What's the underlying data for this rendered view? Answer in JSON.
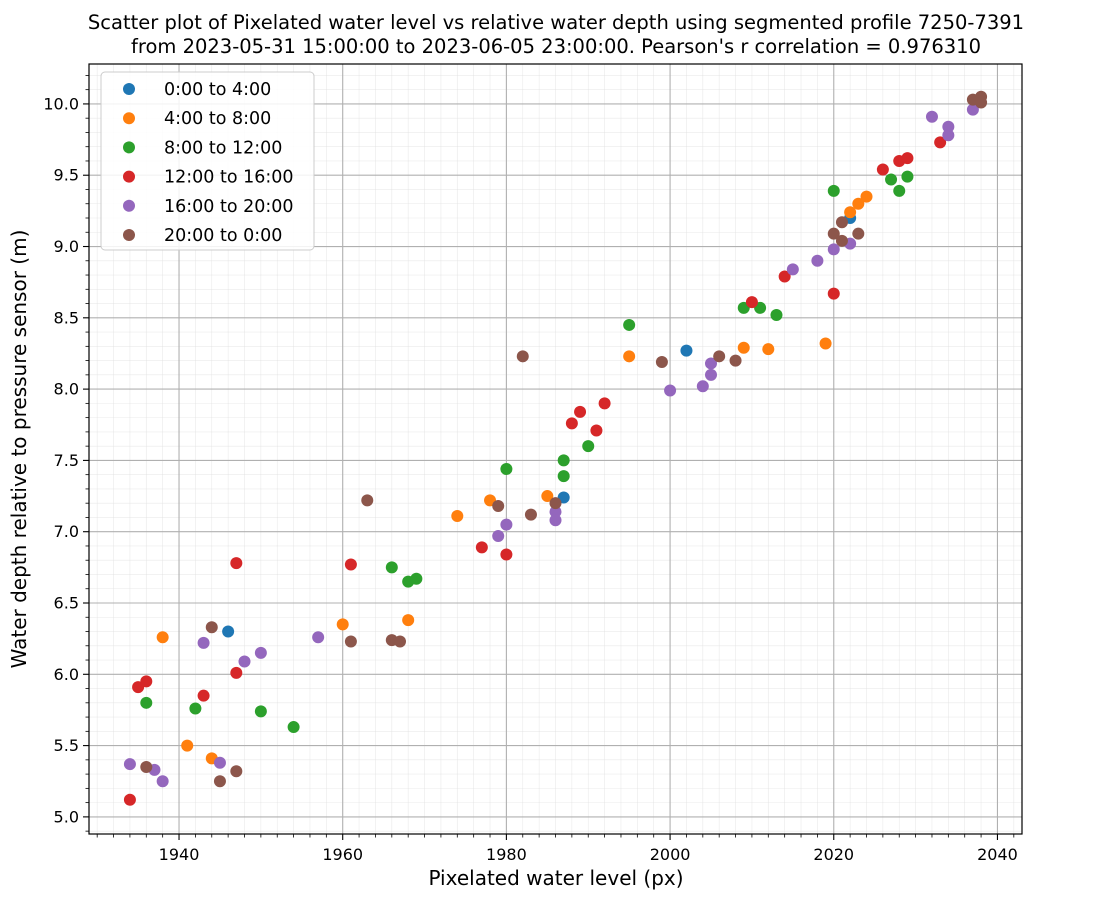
{
  "chart_data": {
    "type": "scatter",
    "title": "Scatter plot of Pixelated water level vs relative water depth using segmented profile 7250-7391\nfrom 2023-05-31 15:00:00 to 2023-06-05 23:00:00. Pearson's r correlation = 0.976310",
    "xlabel": "Pixelated water level (px)",
    "ylabel": "Water depth relative to pressure sensor (m)",
    "xlim": [
      1929,
      2043
    ],
    "ylim": [
      4.88,
      10.28
    ],
    "xticks": [
      1940,
      1960,
      1980,
      2000,
      2020,
      2040
    ],
    "yticks": [
      5.0,
      5.5,
      6.0,
      6.5,
      7.0,
      7.5,
      8.0,
      8.5,
      9.0,
      9.5,
      10.0
    ],
    "xtick_labels": [
      "1940",
      "1960",
      "1980",
      "2000",
      "2020",
      "2040"
    ],
    "ytick_labels": [
      "5.0",
      "5.5",
      "6.0",
      "6.5",
      "7.0",
      "7.5",
      "8.0",
      "8.5",
      "9.0",
      "9.5",
      "10.0"
    ],
    "grid": "major and minor",
    "legend_position": "top-left",
    "series": [
      {
        "name": "0:00 to 4:00",
        "color": "#1f77b4",
        "points": [
          [
            1946,
            6.3
          ],
          [
            1987,
            7.24
          ],
          [
            2002,
            8.27
          ],
          [
            2022,
            9.2
          ]
        ]
      },
      {
        "name": "4:00 to 8:00",
        "color": "#ff7f0e",
        "points": [
          [
            1938,
            6.26
          ],
          [
            1941,
            5.5
          ],
          [
            1944,
            5.41
          ],
          [
            1960,
            6.35
          ],
          [
            1968,
            6.38
          ],
          [
            1974,
            7.11
          ],
          [
            1978,
            7.22
          ],
          [
            1985,
            7.25
          ],
          [
            1995,
            8.23
          ],
          [
            2009,
            8.29
          ],
          [
            2012,
            8.28
          ],
          [
            2019,
            8.32
          ],
          [
            2022,
            9.24
          ],
          [
            2023,
            9.3
          ],
          [
            2024,
            9.35
          ]
        ]
      },
      {
        "name": "8:00 to 12:00",
        "color": "#2ca02c",
        "points": [
          [
            1936,
            5.8
          ],
          [
            1942,
            5.76
          ],
          [
            1950,
            5.74
          ],
          [
            1954,
            5.63
          ],
          [
            1966,
            6.75
          ],
          [
            1968,
            6.65
          ],
          [
            1969,
            6.67
          ],
          [
            1980,
            7.44
          ],
          [
            1987,
            7.5
          ],
          [
            1987,
            7.39
          ],
          [
            1990,
            7.6
          ],
          [
            1995,
            8.45
          ],
          [
            2009,
            8.57
          ],
          [
            2011,
            8.57
          ],
          [
            2013,
            8.52
          ],
          [
            2020,
            9.39
          ],
          [
            2027,
            9.47
          ],
          [
            2028,
            9.39
          ],
          [
            2029,
            9.49
          ]
        ]
      },
      {
        "name": "12:00 to 16:00",
        "color": "#d62728",
        "points": [
          [
            1934,
            5.12
          ],
          [
            1935,
            5.91
          ],
          [
            1936,
            5.95
          ],
          [
            1943,
            5.85
          ],
          [
            1947,
            6.01
          ],
          [
            1947,
            6.78
          ],
          [
            1961,
            6.77
          ],
          [
            1977,
            6.89
          ],
          [
            1980,
            6.84
          ],
          [
            1988,
            7.76
          ],
          [
            1989,
            7.84
          ],
          [
            1991,
            7.71
          ],
          [
            1992,
            7.9
          ],
          [
            2010,
            8.61
          ],
          [
            2014,
            8.79
          ],
          [
            2020,
            8.67
          ],
          [
            2026,
            9.54
          ],
          [
            2028,
            9.6
          ],
          [
            2029,
            9.62
          ],
          [
            2033,
            9.73
          ]
        ]
      },
      {
        "name": "16:00 to 20:00",
        "color": "#9467bd",
        "points": [
          [
            1934,
            5.37
          ],
          [
            1937,
            5.33
          ],
          [
            1938,
            5.25
          ],
          [
            1943,
            6.22
          ],
          [
            1945,
            5.38
          ],
          [
            1948,
            6.09
          ],
          [
            1950,
            6.15
          ],
          [
            1957,
            6.26
          ],
          [
            1979,
            6.97
          ],
          [
            1980,
            7.05
          ],
          [
            1986,
            7.14
          ],
          [
            1986,
            7.08
          ],
          [
            2000,
            7.99
          ],
          [
            2004,
            8.02
          ],
          [
            2005,
            8.18
          ],
          [
            2005,
            8.1
          ],
          [
            2015,
            8.84
          ],
          [
            2018,
            8.9
          ],
          [
            2020,
            8.98
          ],
          [
            2022,
            9.02
          ],
          [
            2032,
            9.91
          ],
          [
            2034,
            9.84
          ],
          [
            2034,
            9.78
          ],
          [
            2037,
            9.96
          ]
        ]
      },
      {
        "name": "20:00 to 0:00",
        "color": "#8c564b",
        "points": [
          [
            1936,
            5.35
          ],
          [
            1944,
            6.33
          ],
          [
            1945,
            5.25
          ],
          [
            1947,
            5.32
          ],
          [
            1961,
            6.23
          ],
          [
            1963,
            7.22
          ],
          [
            1966,
            6.24
          ],
          [
            1967,
            6.23
          ],
          [
            1979,
            7.18
          ],
          [
            1982,
            8.23
          ],
          [
            1983,
            7.12
          ],
          [
            1986,
            7.2
          ],
          [
            1999,
            8.19
          ],
          [
            2006,
            8.23
          ],
          [
            2008,
            8.2
          ],
          [
            2020,
            9.09
          ],
          [
            2021,
            9.17
          ],
          [
            2021,
            9.04
          ],
          [
            2023,
            9.09
          ],
          [
            2037,
            10.03
          ],
          [
            2038,
            10.05
          ],
          [
            2038,
            10.01
          ]
        ]
      }
    ]
  }
}
